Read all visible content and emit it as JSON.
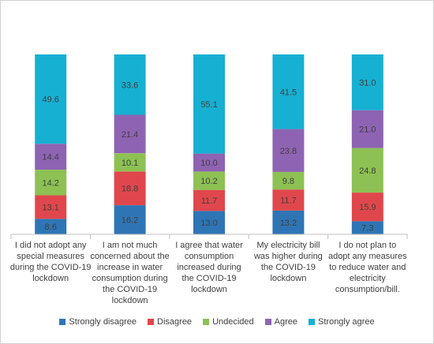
{
  "chart_data": {
    "type": "bar",
    "stacked": true,
    "normalized_percent": true,
    "categories": [
      "I did not adopt any special measures during the COVID-19 lockdown",
      "I am not much concerned about the increase in water consumption during the COVID-19 lockdown",
      "I agree that water consumption increased during the COVID-19 lockdown",
      "My electricity bill was higher during the COVID-19 lockdown",
      "I do not plan to adopt any measures to reduce water and electricity consumption/bill."
    ],
    "category_lines": [
      [
        "I did not adopt any",
        "special measures",
        "during the COVID-19",
        "lockdown"
      ],
      [
        "I am not much",
        "concerned about the",
        "increase in water",
        "consumption during",
        "the COVID-19",
        "lockdown"
      ],
      [
        "I agree that water",
        "consumption",
        "increased during",
        "the COVID-19 lockdown"
      ],
      [
        "My electricity bill",
        "was higher during",
        "the COVID-19",
        "lockdown"
      ],
      [
        "I do not plan to",
        "adopt any measures",
        "to reduce water and",
        "electricity",
        "consumption/bill."
      ]
    ],
    "series": [
      {
        "name": "Strongly disagree",
        "color": "#2E75B6",
        "values": [
          8.6,
          16.2,
          13.0,
          13.2,
          7.3
        ]
      },
      {
        "name": "Disagree",
        "color": "#E0474C",
        "values": [
          13.1,
          18.8,
          11.7,
          11.7,
          15.9
        ]
      },
      {
        "name": "Undecided",
        "color": "#8DC153",
        "values": [
          14.2,
          10.1,
          10.2,
          9.8,
          24.8
        ]
      },
      {
        "name": "Agree",
        "color": "#8E63B3",
        "values": [
          14.4,
          21.4,
          10.0,
          23.8,
          21.0
        ]
      },
      {
        "name": "Strongly agree",
        "color": "#16B0D2",
        "values": [
          49.6,
          33.6,
          55.1,
          41.5,
          31.0
        ]
      }
    ],
    "title": "",
    "xlabel": "",
    "ylabel": "",
    "legend_position": "bottom",
    "grid": false
  }
}
